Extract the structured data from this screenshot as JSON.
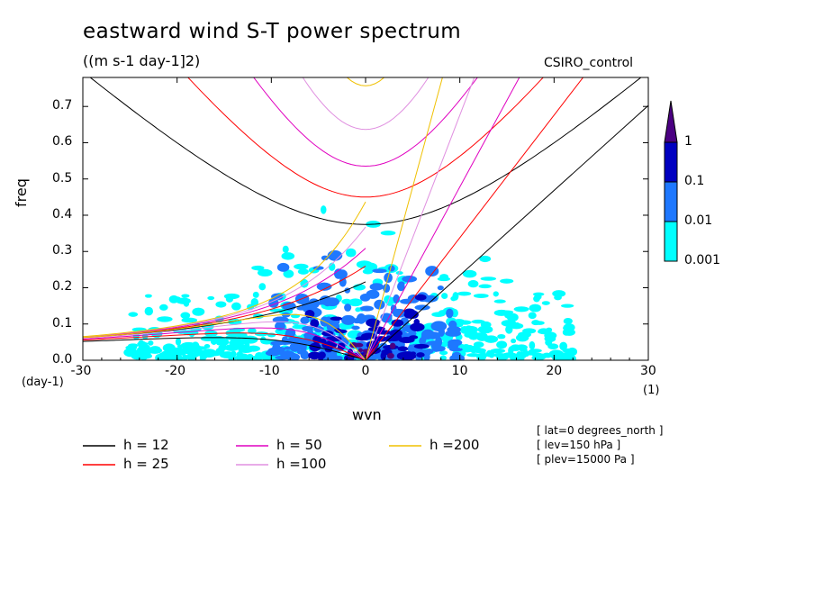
{
  "chart_data": {
    "type": "contour",
    "title": "eastward wind S-T power spectrum",
    "units": "((m s-1 day-1]2)",
    "run_name": "CSIRO_control",
    "xlabel": "wvn",
    "ylabel": "freq",
    "x_unit": "(1)",
    "y_unit": "(day-1)",
    "xlim": [
      -30,
      30
    ],
    "ylim": [
      0,
      0.78
    ],
    "x_ticks": [
      "-30",
      "-20",
      "-10",
      "0",
      "10",
      "20",
      "30"
    ],
    "y_ticks": [
      "0.0",
      "0.1",
      "0.2",
      "0.3",
      "0.4",
      "0.5",
      "0.6",
      "0.7"
    ],
    "colorbar": {
      "levels": [
        "1",
        "0.1",
        "0.01",
        "0.001"
      ],
      "colors": [
        "#4b0082",
        "#0000c0",
        "#1e78ff",
        "#00ffff"
      ]
    },
    "dispersion_curves": [
      {
        "label": "h = 12",
        "h": 12,
        "color": "#000000"
      },
      {
        "label": "h = 25",
        "h": 25,
        "color": "#ff0000"
      },
      {
        "label": "h = 50",
        "h": 50,
        "color": "#e000c0"
      },
      {
        "label": "h =100",
        "h": 100,
        "color": "#e090e0"
      },
      {
        "label": "h =200",
        "h": 200,
        "color": "#f0c000"
      }
    ],
    "info": [
      "[ lat=0 degrees_north ]",
      "[ lev=150 hPa ]",
      "[ plev=15000 Pa ]"
    ]
  }
}
